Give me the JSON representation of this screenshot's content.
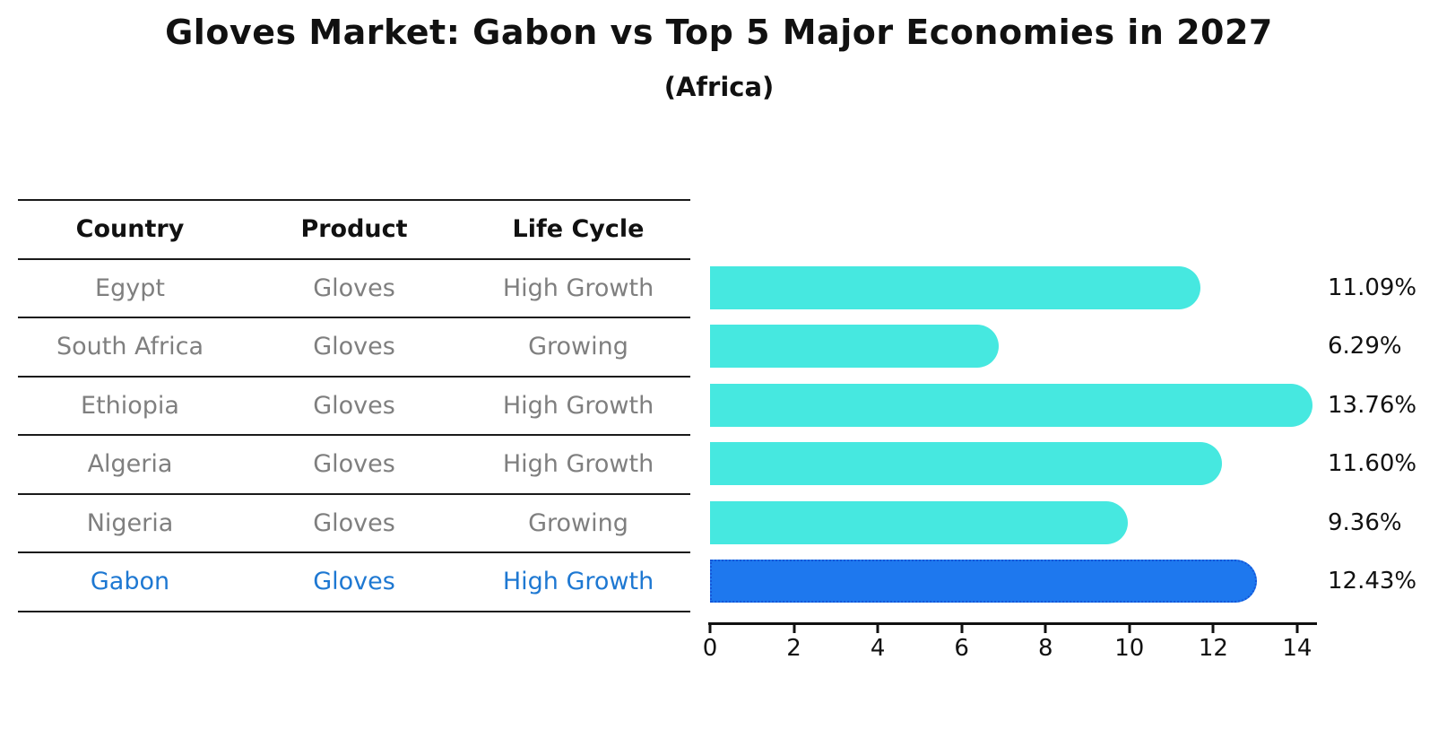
{
  "title": "Gloves Market: Gabon vs Top 5 Major Economies in 2027",
  "subtitle": "(Africa)",
  "table": {
    "headers": [
      "Country",
      "Product",
      "Life Cycle"
    ],
    "rows": [
      {
        "country": "Egypt",
        "product": "Gloves",
        "life_cycle": "High Growth",
        "highlight": false
      },
      {
        "country": "South Africa",
        "product": "Gloves",
        "life_cycle": "Growing",
        "highlight": false
      },
      {
        "country": "Ethiopia",
        "product": "Gloves",
        "life_cycle": "High Growth",
        "highlight": false
      },
      {
        "country": "Algeria",
        "product": "Gloves",
        "life_cycle": "High Growth",
        "highlight": false
      },
      {
        "country": "Nigeria",
        "product": "Gloves",
        "life_cycle": "Growing",
        "highlight": false
      },
      {
        "country": "Gabon",
        "product": "Gloves",
        "life_cycle": "High Growth",
        "highlight": true
      }
    ]
  },
  "chart_data": {
    "type": "bar",
    "orientation": "horizontal",
    "title": "Gloves Market: Gabon vs Top 5 Major Economies in 2027",
    "subtitle": "(Africa)",
    "categories": [
      "Egypt",
      "South Africa",
      "Ethiopia",
      "Algeria",
      "Nigeria",
      "Gabon"
    ],
    "values": [
      11.09,
      6.29,
      13.76,
      11.6,
      9.36,
      12.43
    ],
    "value_labels": [
      "11.09%",
      "6.29%",
      "13.76%",
      "11.60%",
      "9.36%",
      "12.43%"
    ],
    "unit": "%",
    "highlight_index": 5,
    "x_ticks": [
      0,
      2,
      4,
      6,
      8,
      10,
      12,
      14
    ],
    "xlim": [
      0,
      14.45
    ],
    "grid": false,
    "legend": false,
    "colors": {
      "bar_default": "#46e8e0",
      "bar_highlight": "#1e78ee",
      "bar_highlight_border": "#1456d8",
      "highlight_text": "#1e78d2",
      "row_text": "#7f7f7f",
      "header_text": "#111111"
    }
  }
}
